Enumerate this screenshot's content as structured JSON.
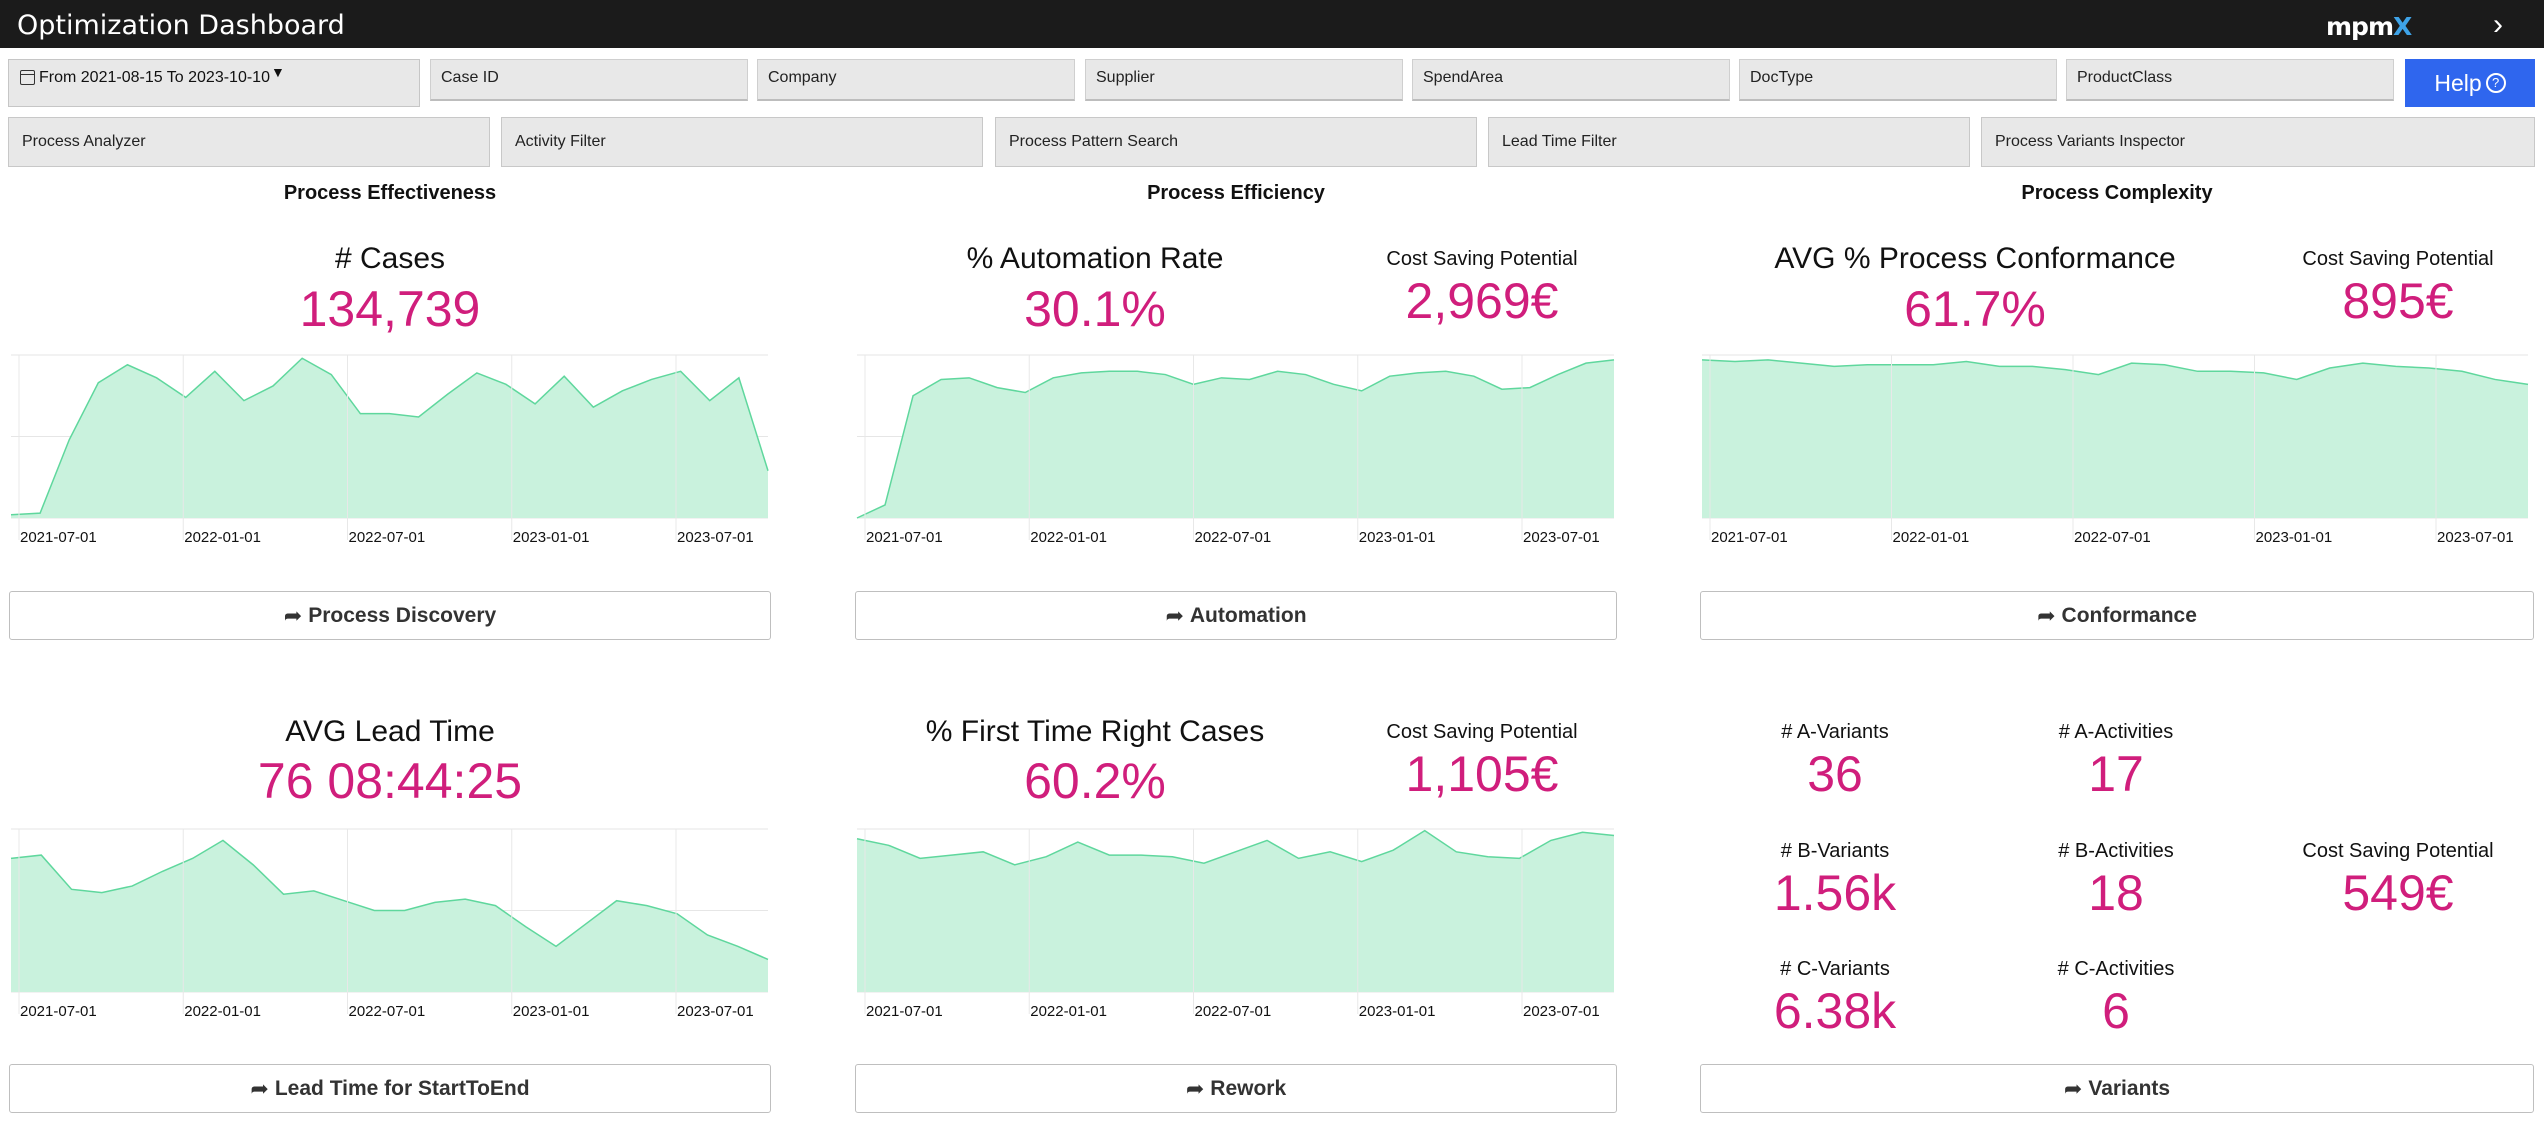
{
  "header": {
    "title": "Optimization Dashboard",
    "logo_main": "mpm",
    "logo_x": "X"
  },
  "filters": {
    "date": "From 2021-08-15 To 2023-10-10",
    "fields": [
      "Case ID",
      "Company",
      "Supplier",
      "SpendArea",
      "DocType",
      "ProductClass"
    ],
    "help": "Help"
  },
  "nav": [
    "Process Analyzer",
    "Activity Filter",
    "Process Pattern Search",
    "Lead Time Filter",
    "Process Variants Inspector"
  ],
  "sections": {
    "effectiveness": "Process Effectiveness",
    "efficiency": "Process Efficiency",
    "complexity": "Process Complexity"
  },
  "kpis": {
    "cases": {
      "label": "# Cases",
      "value": "134,739"
    },
    "automation": {
      "label": "% Automation Rate",
      "value": "30.1%",
      "csp_label": "Cost Saving Potential",
      "csp_value": "2,969€"
    },
    "conformance": {
      "label": "AVG % Process Conformance",
      "value": "61.7%",
      "csp_label": "Cost Saving Potential",
      "csp_value": "895€"
    },
    "leadtime": {
      "label": "AVG Lead Time",
      "value": "76 08:44:25"
    },
    "ftr": {
      "label": "% First Time Right Cases",
      "value": "60.2%",
      "csp_label": "Cost Saving Potential",
      "csp_value": "1,105€"
    },
    "variants": {
      "a_variants_label": "# A-Variants",
      "a_variants": "36",
      "a_activities_label": "# A-Activities",
      "a_activities": "17",
      "b_variants_label": "# B-Variants",
      "b_variants": "1.56k",
      "b_activities_label": "# B-Activities",
      "b_activities": "18",
      "c_variants_label": "# C-Variants",
      "c_variants": "6.38k",
      "c_activities_label": "# C-Activities",
      "c_activities": "6",
      "csp_label": "Cost Saving Potential",
      "csp_value": "549€"
    }
  },
  "buttons": {
    "discovery": "Process Discovery",
    "automation": "Automation",
    "conformance": "Conformance",
    "leadtime": "Lead Time for StartToEnd",
    "rework": "Rework",
    "variants": "Variants"
  },
  "colors": {
    "accent_value": "#d01e7c",
    "area_fill": "#c9f2dd",
    "area_line": "#5fd79d",
    "help_bg": "#2f66ee",
    "topbar": "#1b1b1b"
  },
  "chart_data": [
    {
      "id": "cases",
      "type": "area",
      "x_ticks": [
        "2021-07-01",
        "2022-01-01",
        "2022-07-01",
        "2023-01-01",
        "2023-07-01"
      ],
      "ylim": [
        0,
        1
      ],
      "values": [
        0.02,
        0.03,
        0.48,
        0.83,
        0.94,
        0.86,
        0.74,
        0.9,
        0.72,
        0.81,
        0.98,
        0.88,
        0.64,
        0.64,
        0.62,
        0.76,
        0.89,
        0.82,
        0.7,
        0.87,
        0.68,
        0.78,
        0.85,
        0.9,
        0.72,
        0.86,
        0.29
      ]
    },
    {
      "id": "automation",
      "type": "area",
      "x_ticks": [
        "2021-07-01",
        "2022-01-01",
        "2022-07-01",
        "2023-01-01",
        "2023-07-01"
      ],
      "ylim": [
        0,
        1
      ],
      "values": [
        0.0,
        0.08,
        0.75,
        0.85,
        0.86,
        0.8,
        0.77,
        0.86,
        0.89,
        0.9,
        0.9,
        0.88,
        0.82,
        0.86,
        0.85,
        0.9,
        0.88,
        0.82,
        0.78,
        0.87,
        0.89,
        0.9,
        0.87,
        0.79,
        0.8,
        0.88,
        0.95,
        0.97
      ]
    },
    {
      "id": "conformance",
      "type": "area",
      "x_ticks": [
        "2021-07-01",
        "2022-01-01",
        "2022-07-01",
        "2023-01-01",
        "2023-07-01"
      ],
      "ylim": [
        0,
        1
      ],
      "values": [
        0.97,
        0.96,
        0.97,
        0.95,
        0.93,
        0.94,
        0.94,
        0.94,
        0.96,
        0.93,
        0.93,
        0.91,
        0.88,
        0.95,
        0.94,
        0.9,
        0.9,
        0.89,
        0.85,
        0.92,
        0.95,
        0.93,
        0.92,
        0.9,
        0.85,
        0.82
      ]
    },
    {
      "id": "leadtime",
      "type": "area",
      "x_ticks": [
        "2021-07-01",
        "2022-01-01",
        "2022-07-01",
        "2023-01-01",
        "2023-07-01"
      ],
      "ylim": [
        0,
        1
      ],
      "values": [
        0.82,
        0.84,
        0.63,
        0.61,
        0.65,
        0.74,
        0.82,
        0.93,
        0.78,
        0.6,
        0.62,
        0.56,
        0.5,
        0.5,
        0.55,
        0.57,
        0.53,
        0.4,
        0.28,
        0.42,
        0.56,
        0.53,
        0.48,
        0.35,
        0.28,
        0.2
      ]
    },
    {
      "id": "ftr",
      "type": "area",
      "x_ticks": [
        "2021-07-01",
        "2022-01-01",
        "2022-07-01",
        "2023-01-01",
        "2023-07-01"
      ],
      "ylim": [
        0,
        1
      ],
      "values": [
        0.94,
        0.9,
        0.82,
        0.84,
        0.86,
        0.78,
        0.83,
        0.92,
        0.84,
        0.84,
        0.83,
        0.79,
        0.86,
        0.93,
        0.82,
        0.86,
        0.8,
        0.87,
        0.99,
        0.86,
        0.83,
        0.82,
        0.93,
        0.98,
        0.96
      ]
    }
  ]
}
